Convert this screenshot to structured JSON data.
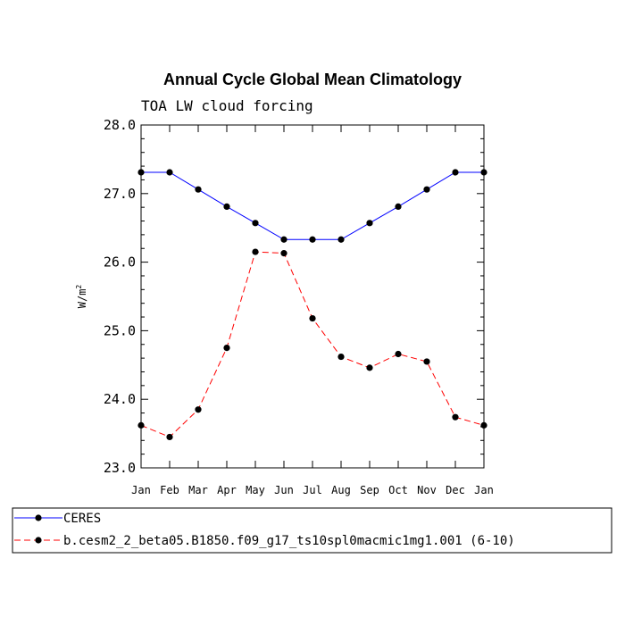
{
  "chart_data": {
    "type": "line",
    "title": "Annual Cycle Global Mean Climatology",
    "subtitle": "TOA LW cloud forcing",
    "ylabel": "W/m",
    "ylabel_superscript": "2",
    "ylim": [
      23.0,
      28.0
    ],
    "yticks": [
      "23.0",
      "24.0",
      "25.0",
      "26.0",
      "27.0",
      "28.0"
    ],
    "categories": [
      "Jan",
      "Feb",
      "Mar",
      "Apr",
      "May",
      "Jun",
      "Jul",
      "Aug",
      "Sep",
      "Oct",
      "Nov",
      "Dec",
      "Jan"
    ],
    "grid": false,
    "legend_position": "bottom",
    "series": [
      {
        "name": "CERES",
        "color": "#0000ff",
        "dash": "solid",
        "values": [
          27.31,
          27.31,
          27.06,
          26.81,
          26.57,
          26.33,
          26.33,
          26.33,
          26.57,
          26.81,
          27.06,
          27.31,
          27.31
        ]
      },
      {
        "name": "b.cesm2_2_beta05.B1850.f09_g17_ts10spl0macmic1mg1.001 (6-10)",
        "color": "#ff0000",
        "dash": "dashed",
        "values": [
          23.62,
          23.45,
          23.85,
          24.75,
          26.15,
          26.13,
          25.18,
          24.62,
          24.46,
          24.66,
          24.55,
          23.74,
          23.62
        ]
      }
    ]
  }
}
